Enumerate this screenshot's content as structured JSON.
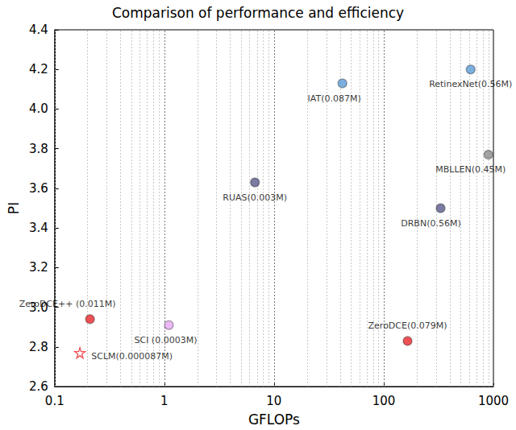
{
  "chart_data": {
    "type": "scatter",
    "title": "Comparison of performance and efficiency",
    "x_label": "GFLOPs",
    "y_label": "PI",
    "log": "x",
    "grid": "x",
    "xlim": [
      0.1,
      1000
    ],
    "xticks": [
      0.1,
      1,
      10,
      100,
      1000
    ],
    "ylim": [
      2.6,
      4.4
    ],
    "yticks": [
      2.6,
      2.8,
      {
        "value": 3,
        "label": "3.0"
      },
      3.2,
      3.4,
      3.6,
      3.8,
      {
        "value": 4,
        "label": "4.0"
      },
      4.2,
      4.4
    ],
    "series": [
      {
        "name": "ZeroDCE++ (0.011M)",
        "color": "#e8262a",
        "marker": "circle",
        "x": [
          0.21
        ],
        "values": [
          2.94
        ]
      },
      {
        "name": "SCLM(0.000087M)",
        "color": "#e8262a",
        "marker": "star",
        "x": [
          0.17
        ],
        "values": [
          2.77
        ]
      },
      {
        "name": "SCI (0.0003M)",
        "color": "#e6a8f2",
        "marker": "circle",
        "x": [
          1.1
        ],
        "values": [
          2.91
        ]
      },
      {
        "name": "RUAS(0.003M)",
        "color": "#5a5a8c",
        "marker": "circle",
        "x": [
          6.7
        ],
        "values": [
          3.63
        ]
      },
      {
        "name": "IAT(0.087M)",
        "color": "#5b9bd5",
        "marker": "circle",
        "x": [
          42
        ],
        "values": [
          4.13
        ]
      },
      {
        "name": "RetinexNet(0.56M)",
        "color": "#5b9bd5",
        "marker": "circle",
        "x": [
          620
        ],
        "values": [
          4.2
        ]
      },
      {
        "name": "MBLLEN(0.45M)",
        "color": "#8c8c8c",
        "marker": "circle",
        "x": [
          900
        ],
        "values": [
          3.77
        ]
      },
      {
        "name": "DRBN(0.56M)",
        "color": "#5a5a8c",
        "marker": "circle",
        "x": [
          330
        ],
        "values": [
          3.5
        ]
      },
      {
        "name": "ZeroDCE(0.079M)",
        "color": "#e8262a",
        "marker": "circle",
        "x": [
          165
        ],
        "values": [
          2.83
        ]
      }
    ]
  }
}
